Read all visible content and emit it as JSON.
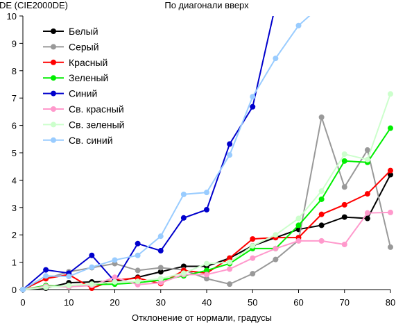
{
  "chart_data": {
    "type": "line",
    "title": "По диагонали вверх",
    "ylabel": "DE (CIE2000DE)",
    "xlabel": "Отклонение от нормали, градусы",
    "xlim": [
      0,
      80
    ],
    "ylim": [
      0,
      10
    ],
    "xticks": [
      0,
      10,
      20,
      30,
      40,
      50,
      60,
      70,
      80
    ],
    "yticks": [
      0,
      1,
      2,
      3,
      4,
      5,
      6,
      7,
      8,
      9,
      10
    ],
    "grid": false,
    "legend_position": "top-left",
    "x": [
      0,
      5,
      10,
      15,
      20,
      25,
      30,
      35,
      40,
      45,
      50,
      55,
      60,
      65,
      70,
      75,
      80
    ],
    "series": [
      {
        "name": "Белый",
        "color": "#000000",
        "values": [
          0,
          0.05,
          0.25,
          0.28,
          0.3,
          0.45,
          0.65,
          0.85,
          0.85,
          1.15,
          1.6,
          1.9,
          2.2,
          2.35,
          2.65,
          2.6,
          4.2
        ]
      },
      {
        "name": "Серый",
        "color": "#999999",
        "values": [
          0,
          0.4,
          0.65,
          0.8,
          0.95,
          0.7,
          0.8,
          0.72,
          0.4,
          0.2,
          0.58,
          1.1,
          1.8,
          6.3,
          3.75,
          5.1,
          1.55
        ]
      },
      {
        "name": "Красный",
        "color": "#ff0000",
        "values": [
          0,
          0.4,
          0.55,
          0.05,
          0.35,
          0.42,
          0.22,
          0.7,
          0.6,
          1.15,
          1.85,
          1.9,
          1.9,
          2.75,
          3.1,
          3.5,
          4.35
        ]
      },
      {
        "name": "Зеленый",
        "color": "#00ee00",
        "values": [
          0,
          0.15,
          0.1,
          0.18,
          0.2,
          0.25,
          0.35,
          0.5,
          0.7,
          0.95,
          1.5,
          1.5,
          2.35,
          3.3,
          4.7,
          4.65,
          5.9
        ]
      },
      {
        "name": "Синий",
        "color": "#0000cc",
        "values": [
          0,
          0.72,
          0.6,
          1.25,
          0.3,
          1.68,
          1.42,
          2.62,
          2.92,
          5.32,
          6.68,
          10.4,
          null,
          null,
          null,
          null,
          null
        ]
      },
      {
        "name": "Св. красный",
        "color": "#ff99cc",
        "values": [
          0,
          0.12,
          0.1,
          0.15,
          0.45,
          0.18,
          0.25,
          0.55,
          0.55,
          0.75,
          1.15,
          1.5,
          1.78,
          1.78,
          1.65,
          2.8,
          2.82
        ]
      },
      {
        "name": "Св. зеленый",
        "color": "#ccffcc",
        "values": [
          0,
          0.08,
          0.15,
          0.2,
          0.28,
          0.3,
          0.4,
          0.6,
          0.95,
          1.0,
          1.6,
          2.0,
          2.6,
          3.6,
          4.95,
          4.75,
          7.15
        ]
      },
      {
        "name": "Св. синий",
        "color": "#99ccff",
        "values": [
          0,
          0.5,
          0.48,
          0.82,
          1.08,
          1.25,
          1.95,
          3.48,
          3.55,
          4.92,
          7.05,
          8.45,
          9.65,
          10.4,
          null,
          null,
          null
        ]
      }
    ]
  }
}
